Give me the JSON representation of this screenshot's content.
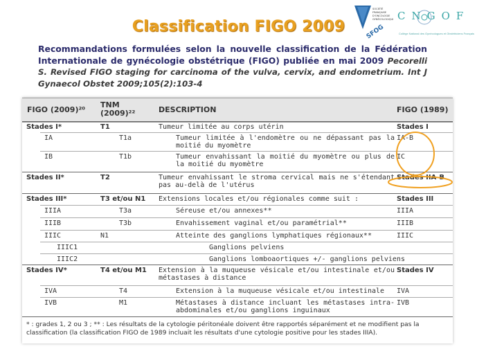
{
  "slide": {
    "title": "Classification  FIGO 2009",
    "recommendation": "Recommandations formulées selon la nouvelle classification de la Fédération Internationale de gynécologie obstétrique (FIGO) publiée en mai 2009",
    "citation": "Pecorelli S. Revised FIGO staging for carcinoma of the vulva, cervix, and endometrium. Int J Gynaecol Obstet 2009;105(2):103-4"
  },
  "logos": {
    "sfog_text": "SOCIÉTÉ FRANÇAISE D'ONCOLOGIE GYNÉCOLOGIQUE",
    "sfog_abbr": "SFOG",
    "cngof_letters": "CNGOF",
    "cngof_tagline": "Collège National des Gynécologues et Obstétriciens Français"
  },
  "table": {
    "headers": {
      "figo2009": "FIGO (2009)²⁰",
      "tnm": "TNM (2009)²²",
      "description": "DESCRIPTION",
      "figo1989": "FIGO (1989)"
    },
    "rows": [
      {
        "figo2009": "Stades I*",
        "tnm": "T1",
        "description": "Tumeur limitée au corps utérin",
        "figo1989": "Stades I"
      },
      {
        "figo2009": "IA",
        "tnm": "T1a",
        "description": "Tumeur limitée à l'endomètre ou ne dépassant pas la moitié du myomètre",
        "figo1989": "IA-B"
      },
      {
        "figo2009": "IB",
        "tnm": "T1b",
        "description": "Tumeur envahissant la moitié du myomètre ou plus de la moitié du myomètre",
        "figo1989": "IC"
      },
      {
        "figo2009": "Stades II*",
        "tnm": "T2",
        "description": "Tumeur envahissant le stroma cervical mais ne s'étendant pas au-delà de l'utérus",
        "figo1989": "Stades IIA-B"
      },
      {
        "figo2009": "Stades III*",
        "tnm": "T3 et/ou N1",
        "description": "Extensions locales et/ou régionales comme suit :",
        "figo1989": "Stades III"
      },
      {
        "figo2009": "IIIA",
        "tnm": "T3a",
        "description": "Séreuse et/ou annexes**",
        "figo1989": "IIIA"
      },
      {
        "figo2009": "IIIB",
        "tnm": "T3b",
        "description": "Envahissement vaginal et/ou paramétrial**",
        "figo1989": "IIIB"
      },
      {
        "figo2009": "IIIC",
        "tnm": "N1",
        "description": "Atteinte des ganglions lymphatiques régionaux**",
        "figo1989": "IIIC"
      },
      {
        "figo2009": "IIIC1",
        "tnm": "",
        "description": "Ganglions pelviens",
        "figo1989": ""
      },
      {
        "figo2009": "IIIC2",
        "tnm": "",
        "description": "Ganglions lomboaortiques +/- ganglions pelviens",
        "figo1989": ""
      },
      {
        "figo2009": "Stades IV*",
        "tnm": "T4 et/ou M1",
        "description": "Extension à la muqueuse vésicale et/ou intestinale et/ou métastases à distance",
        "figo1989": "Stades IV"
      },
      {
        "figo2009": "IVA",
        "tnm": "T4",
        "description": "Extension à la muqueuse vésicale et/ou intestinale",
        "figo1989": "IVA"
      },
      {
        "figo2009": "IVB",
        "tnm": "M1",
        "description": "Métastases à distance incluant les métastases intra-abdominales et/ou ganglions inguinaux",
        "figo1989": "IVB"
      }
    ],
    "footnote": "* : grades 1, 2 ou 3 ; ** : Les résultats de la cytologie péritonéale doivent être rapportés séparément et ne modifient pas la classification (la classification FIGO de 1989 incluait les résultats d'une cytologie positive pour les stades IIIA)."
  },
  "colors": {
    "title": "#e8a020",
    "recommendation": "#2b2b6b",
    "annotation": "#f0a020",
    "header_bg": "#e5e5e5"
  }
}
